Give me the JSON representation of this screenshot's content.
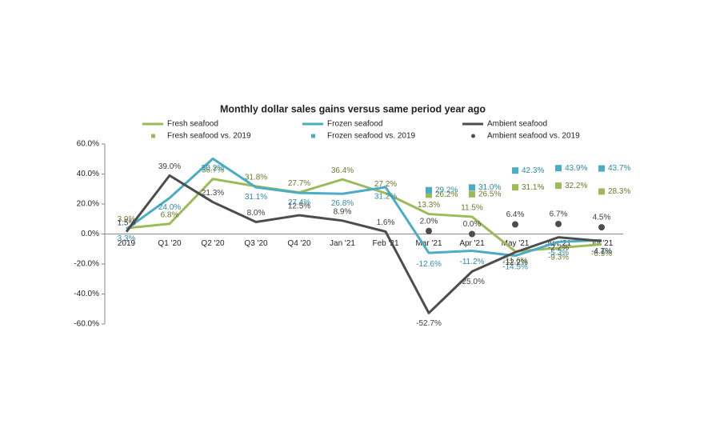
{
  "chart_data": {
    "type": "line",
    "title": "Monthly dollar sales gains versus same period year ago",
    "categories": [
      "2019",
      "Q1 '20",
      "Q2 '20",
      "Q3 '20",
      "Q4 '20",
      "Jan '21",
      "Feb '21",
      "Mar '21",
      "Apr '21",
      "May '21",
      "Jun '21",
      "Jul '21"
    ],
    "ylim": [
      -60,
      60
    ],
    "yticks": [
      {
        "value": -60,
        "label": "-60.0%"
      },
      {
        "value": -40,
        "label": "-40.0%"
      },
      {
        "value": -20,
        "label": "-20.0%"
      },
      {
        "value": 0,
        "label": "0.0%"
      },
      {
        "value": 20,
        "label": "20.0%"
      },
      {
        "value": 40,
        "label": "40.0%"
      },
      {
        "value": 60,
        "label": "60.0%"
      }
    ],
    "grid": false,
    "series": [
      {
        "name": "Fresh seafood",
        "color": "#9bbb59",
        "marker": "line",
        "values": [
          3.9,
          6.8,
          36.7,
          31.8,
          27.7,
          36.4,
          27.2,
          13.3,
          11.5,
          -11.6,
          -9.3,
          -6.9
        ],
        "value_labels": [
          "3.9%",
          "6.8%",
          "36.7%",
          "31.8%",
          "27.7%",
          "36.4%",
          "27.2%",
          "13.3%",
          "11.5%",
          "-11.6%",
          "-9.3%",
          "-6.9%"
        ]
      },
      {
        "name": "Frozen seafood",
        "color": "#4bacc6",
        "marker": "line",
        "values": [
          3.3,
          24.0,
          50.2,
          31.1,
          27.4,
          26.8,
          31.2,
          -12.6,
          -11.2,
          -14.5,
          -5.3,
          -4.1
        ],
        "value_labels": [
          "3.3%",
          "24.0%",
          "50.2%",
          "31.1%",
          "27.4%",
          "26.8%",
          "31.2%",
          "-12.6%",
          "-11.2%",
          "-14.5%",
          "-5.3%",
          "-4.1%"
        ]
      },
      {
        "name": "Ambient seafood",
        "color": "#4d4d4d",
        "marker": "line",
        "values": [
          1.5,
          39.0,
          21.3,
          8.0,
          12.5,
          8.9,
          1.6,
          -52.7,
          -25.0,
          -12.2,
          -2.2,
          -4.7
        ],
        "value_labels": [
          "1.5%",
          "39.0%",
          "21.3%",
          "8.0%",
          "12.5%",
          "8.9%",
          "1.6%",
          "-52.7%",
          "-25.0%",
          "-12.2%",
          "-2.2%",
          "-4.7%"
        ]
      },
      {
        "name": "Fresh seafood vs. 2019",
        "color": "#9bbb59",
        "marker": "square",
        "values": [
          null,
          null,
          null,
          null,
          null,
          null,
          null,
          26.2,
          26.5,
          31.1,
          32.2,
          28.3
        ],
        "value_labels": [
          null,
          null,
          null,
          null,
          null,
          null,
          null,
          "26.2%",
          "26.5%",
          "31.1%",
          "32.2%",
          "28.3%"
        ]
      },
      {
        "name": "Frozen seafood vs. 2019",
        "color": "#4bacc6",
        "marker": "square",
        "values": [
          null,
          null,
          null,
          null,
          null,
          null,
          null,
          29.2,
          31.0,
          42.3,
          43.9,
          43.7
        ],
        "value_labels": [
          null,
          null,
          null,
          null,
          null,
          null,
          null,
          "29.2%",
          "31.0%",
          "42.3%",
          "43.9%",
          "43.7%"
        ]
      },
      {
        "name": "Ambient seafood vs. 2019",
        "color": "#4d4d4d",
        "marker": "circle",
        "values": [
          null,
          null,
          null,
          null,
          null,
          null,
          null,
          2.0,
          0.0,
          6.4,
          6.7,
          4.5
        ],
        "value_labels": [
          null,
          null,
          null,
          null,
          null,
          null,
          null,
          "2.0%",
          "0.0%",
          "6.4%",
          "6.7%",
          "4.5%"
        ]
      }
    ]
  }
}
